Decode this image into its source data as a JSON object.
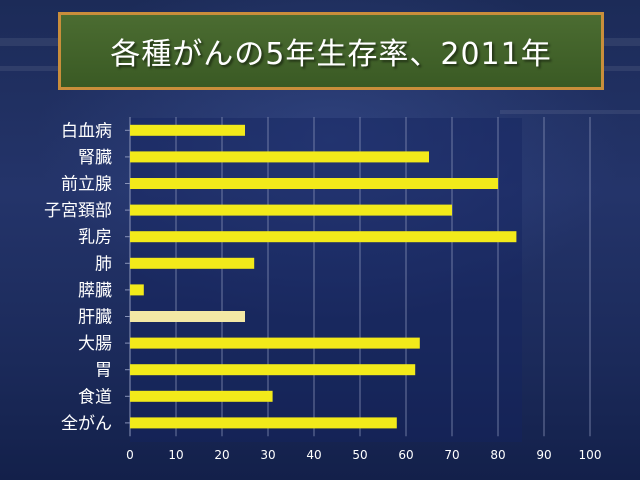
{
  "slide": {
    "title": "各種がんの5年生存率、2011年"
  },
  "colors": {
    "bar": "#f2ea1a",
    "bar_highlight": "#f3e9a5",
    "axis_text": "#ffffff",
    "gridline": "#8a94b8"
  },
  "chart_data": {
    "type": "bar",
    "orientation": "horizontal",
    "categories": [
      "白血病",
      "腎臓",
      "前立腺",
      "子宮頚部",
      "乳房",
      "肺",
      "膵臓",
      "肝臓",
      "大腸",
      "胃",
      "食道",
      "全がん"
    ],
    "values": [
      25,
      65,
      80,
      70,
      84,
      27,
      3,
      25,
      63,
      62,
      31,
      58
    ],
    "highlighted_category": "肝臓",
    "xlim": [
      0,
      100
    ],
    "x_ticks": [
      0,
      10,
      20,
      30,
      40,
      50,
      60,
      70,
      80,
      90,
      100
    ],
    "grid": "vertical",
    "legend": "none"
  }
}
